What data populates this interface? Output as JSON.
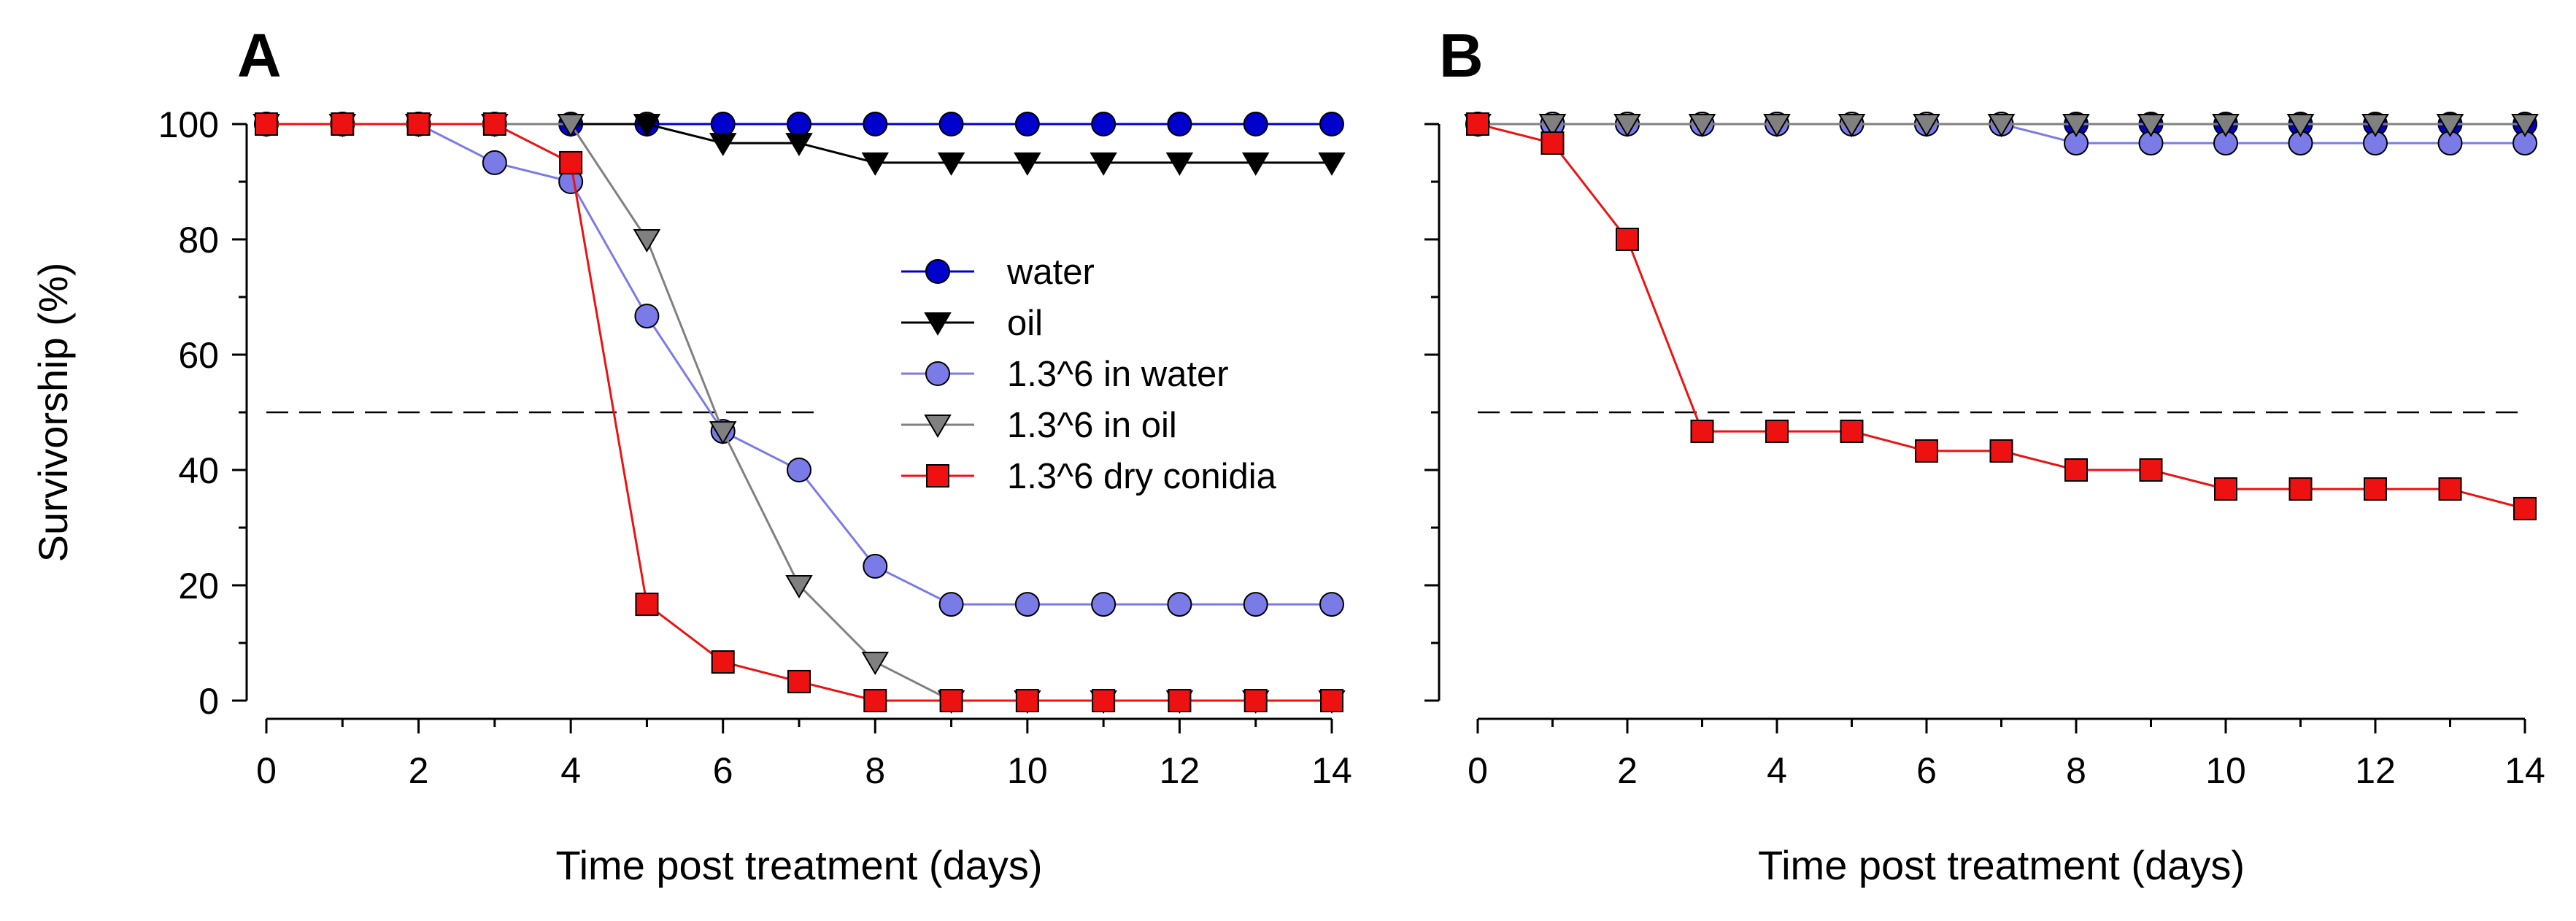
{
  "chart_data": [
    {
      "panel": "A",
      "type": "line",
      "xlabel": "Time post treatment (days)",
      "ylabel": "Survivorship (%)",
      "xlim": [
        0,
        14
      ],
      "ylim": [
        0,
        100
      ],
      "x_ticks": [
        0,
        2,
        4,
        6,
        8,
        10,
        12,
        14
      ],
      "y_ticks": [
        0,
        20,
        40,
        60,
        80,
        100
      ],
      "reference_line": {
        "y": 50,
        "x_range": [
          0,
          7.3
        ],
        "style": "dashed"
      },
      "legend_position": "center-right",
      "x": [
        0,
        1,
        2,
        3,
        4,
        5,
        6,
        7,
        8,
        9,
        10,
        11,
        12,
        13,
        14
      ],
      "series": [
        {
          "name": "water",
          "color": "#0000cc",
          "marker": "circle",
          "values": [
            100,
            100,
            100,
            100,
            100,
            100,
            100,
            100,
            100,
            100,
            100,
            100,
            100,
            100,
            100
          ]
        },
        {
          "name": "oil",
          "color": "#000000",
          "marker": "triangle-down",
          "values": [
            100,
            100,
            100,
            100,
            100,
            100,
            96.7,
            96.7,
            93.3,
            93.3,
            93.3,
            93.3,
            93.3,
            93.3,
            93.3
          ]
        },
        {
          "name": "1.3^6 in water",
          "color": "#7b7be8",
          "marker": "circle",
          "values": [
            100,
            100,
            100,
            93.3,
            90,
            66.7,
            46.7,
            40,
            23.3,
            16.7,
            16.7,
            16.7,
            16.7,
            16.7,
            16.7
          ]
        },
        {
          "name": "1.3^6 in oil",
          "color": "#808080",
          "marker": "triangle-down",
          "values": [
            100,
            100,
            100,
            100,
            100,
            80,
            46.7,
            20,
            6.7,
            0,
            0,
            0,
            0,
            0,
            0
          ]
        },
        {
          "name": "1.3^6 dry conidia",
          "color": "#ee1111",
          "marker": "square",
          "values": [
            100,
            100,
            100,
            100,
            93.3,
            16.7,
            6.7,
            3.3,
            0,
            0,
            0,
            0,
            0,
            0,
            0
          ]
        }
      ]
    },
    {
      "panel": "B",
      "type": "line",
      "xlabel": "Time post treatment (days)",
      "ylabel": "",
      "xlim": [
        0,
        14
      ],
      "ylim": [
        0,
        100
      ],
      "x_ticks": [
        0,
        2,
        4,
        6,
        8,
        10,
        12,
        14
      ],
      "y_ticks": [
        0,
        20,
        40,
        60,
        80,
        100
      ],
      "reference_line": {
        "y": 50,
        "x_range": [
          0,
          14
        ],
        "style": "dashed"
      },
      "x": [
        0,
        1,
        2,
        3,
        4,
        5,
        6,
        7,
        8,
        9,
        10,
        11,
        12,
        13,
        14
      ],
      "series": [
        {
          "name": "water",
          "color": "#0000cc",
          "marker": "circle",
          "values": [
            100,
            100,
            100,
            100,
            100,
            100,
            100,
            100,
            100,
            100,
            100,
            100,
            100,
            100,
            100
          ]
        },
        {
          "name": "oil",
          "color": "#000000",
          "marker": "triangle-down",
          "values": [
            100,
            100,
            100,
            100,
            100,
            100,
            100,
            100,
            100,
            100,
            100,
            100,
            100,
            100,
            100
          ]
        },
        {
          "name": "1.3^6 in water",
          "color": "#7b7be8",
          "marker": "circle",
          "values": [
            100,
            100,
            100,
            100,
            100,
            100,
            100,
            100,
            96.7,
            96.7,
            96.7,
            96.7,
            96.7,
            96.7,
            96.7
          ]
        },
        {
          "name": "1.3^6 in oil",
          "color": "#808080",
          "marker": "triangle-down",
          "values": [
            100,
            100,
            100,
            100,
            100,
            100,
            100,
            100,
            100,
            100,
            100,
            100,
            100,
            100,
            100
          ]
        },
        {
          "name": "1.3^6 dry conidia",
          "color": "#ee1111",
          "marker": "square",
          "values": [
            100,
            96.7,
            80,
            46.7,
            46.7,
            46.7,
            43.3,
            43.3,
            40,
            40,
            36.7,
            36.7,
            36.7,
            36.7,
            33.3
          ]
        }
      ]
    }
  ]
}
